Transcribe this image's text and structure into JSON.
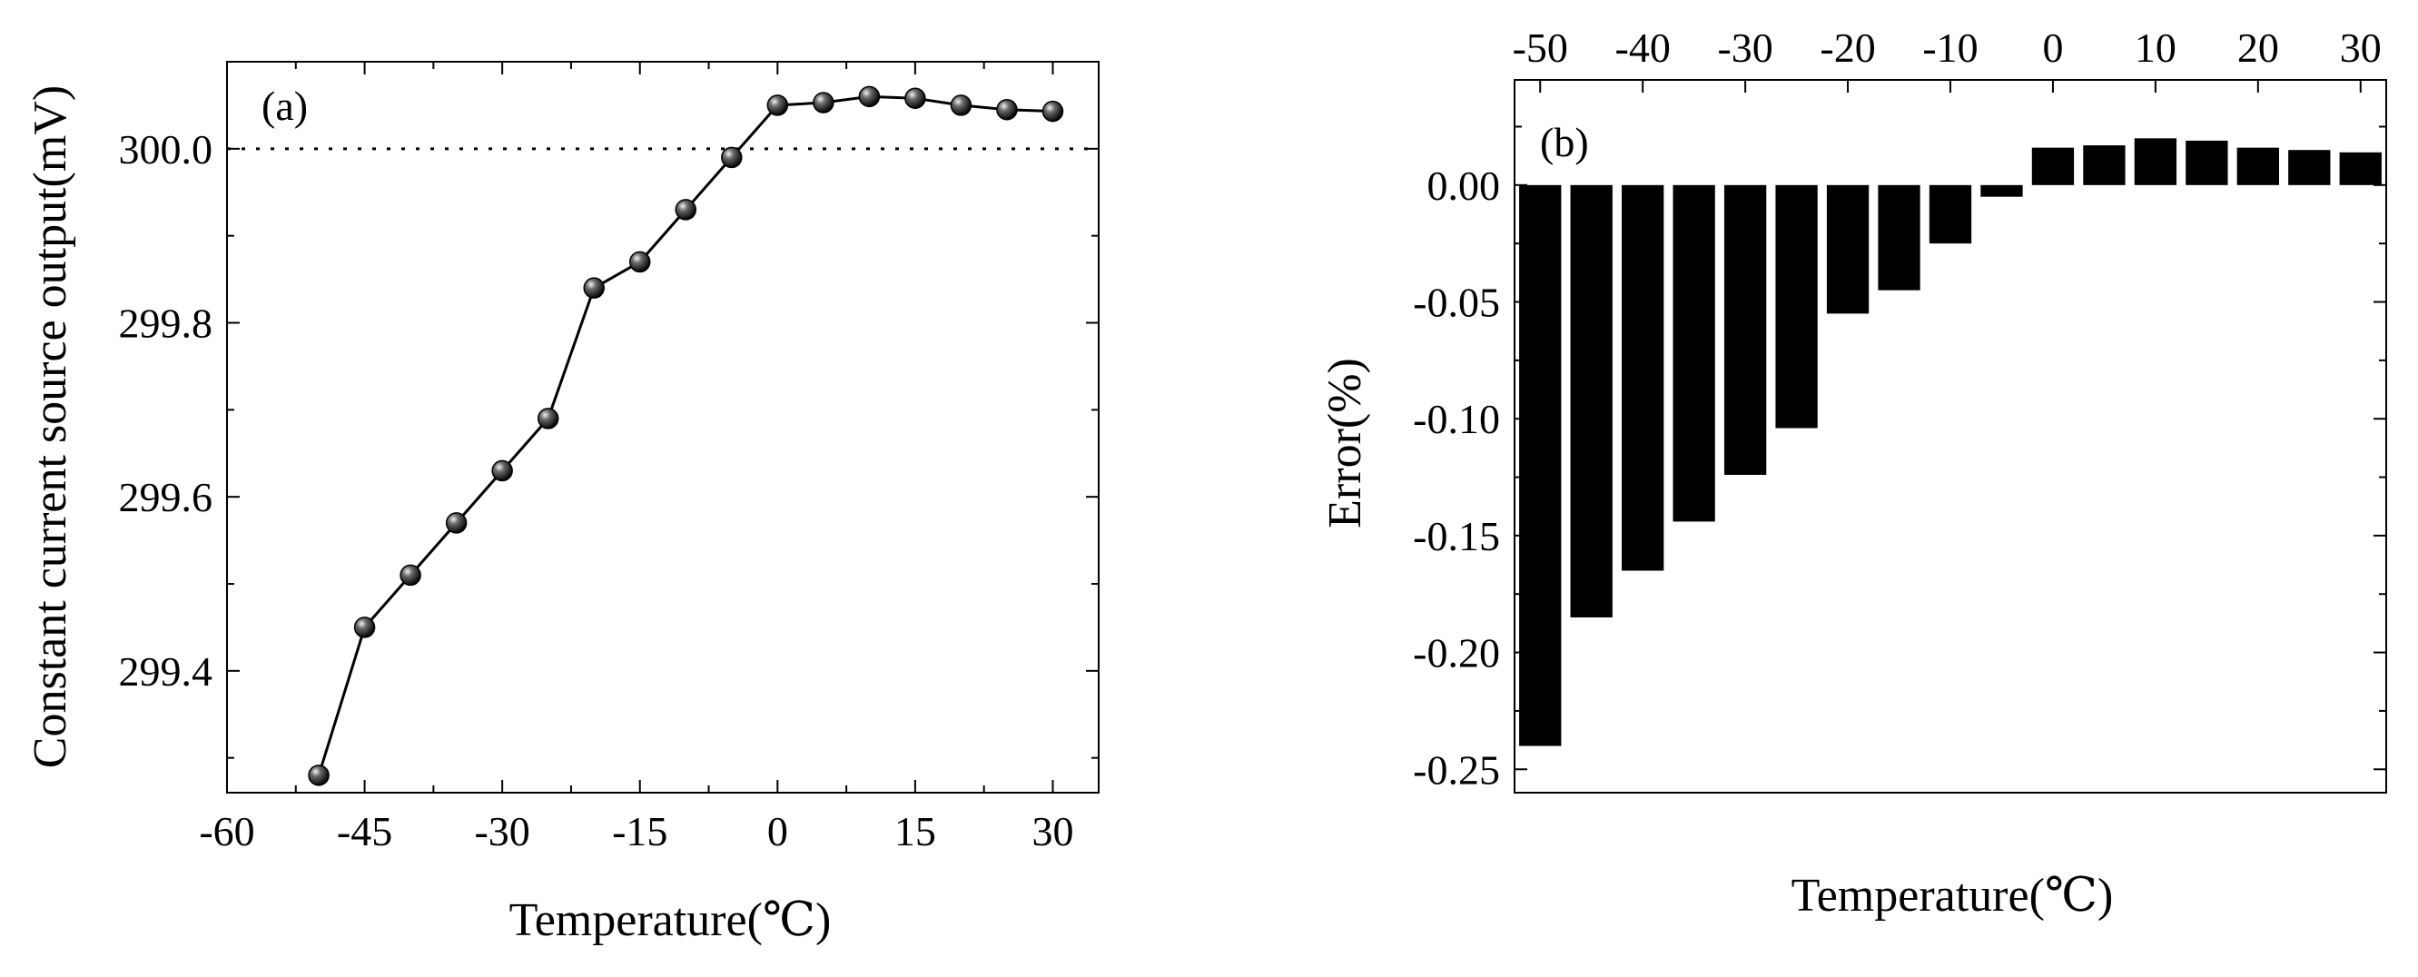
{
  "chart_data": [
    {
      "type": "line",
      "panel_label": "(a)",
      "xlabel": "Temperature(℃)",
      "ylabel": "Constant current source output(mV)",
      "xlim": [
        -60,
        35
      ],
      "ylim": [
        299.26,
        300.1
      ],
      "xticks": [
        -60,
        -45,
        -30,
        -15,
        0,
        15,
        30
      ],
      "xtick_labels": [
        "-60",
        "-45",
        "-30",
        "-15",
        "0",
        "15",
        "30"
      ],
      "yticks": [
        299.4,
        299.6,
        299.8,
        300.0
      ],
      "ytick_labels": [
        "299.4",
        "299.6",
        "299.8",
        "300.0"
      ],
      "reference_line": 300.0,
      "grid": false,
      "series": [
        {
          "x": [
            -50,
            -45,
            -40,
            -35,
            -30,
            -25,
            -20,
            -15,
            -10,
            -5,
            0,
            5,
            10,
            15,
            20,
            25,
            30
          ],
          "y": [
            299.28,
            299.45,
            299.51,
            299.57,
            299.63,
            299.69,
            299.84,
            299.87,
            299.93,
            299.99,
            300.05,
            300.053,
            300.06,
            300.058,
            300.05,
            300.045,
            300.043
          ]
        }
      ]
    },
    {
      "type": "bar",
      "panel_label": "(b)",
      "xlabel": "Temperature(℃)",
      "ylabel": "Error(%)",
      "xlim": [
        -52.5,
        32.5
      ],
      "ylim": [
        -0.26,
        0.045
      ],
      "xaxis_position": "top",
      "xticks": [
        -50,
        -40,
        -30,
        -20,
        -10,
        0,
        10,
        20,
        30
      ],
      "xtick_labels": [
        "-50",
        "-40",
        "-30",
        "-20",
        "-10",
        "0",
        "10",
        "20",
        "30"
      ],
      "yticks": [
        -0.25,
        -0.2,
        -0.15,
        -0.1,
        -0.05,
        0.0
      ],
      "ytick_labels": [
        "-0.25",
        "-0.20",
        "-0.15",
        "-0.10",
        "-0.05",
        "0.00"
      ],
      "grid": false,
      "categories": [
        -50,
        -45,
        -40,
        -35,
        -30,
        -25,
        -20,
        -15,
        -10,
        -5,
        0,
        5,
        10,
        15,
        20,
        25,
        30
      ],
      "values": [
        -0.24,
        -0.185,
        -0.165,
        -0.144,
        -0.124,
        -0.104,
        -0.055,
        -0.045,
        -0.025,
        -0.005,
        0.016,
        0.017,
        0.02,
        0.019,
        0.016,
        0.015,
        0.014
      ]
    }
  ]
}
